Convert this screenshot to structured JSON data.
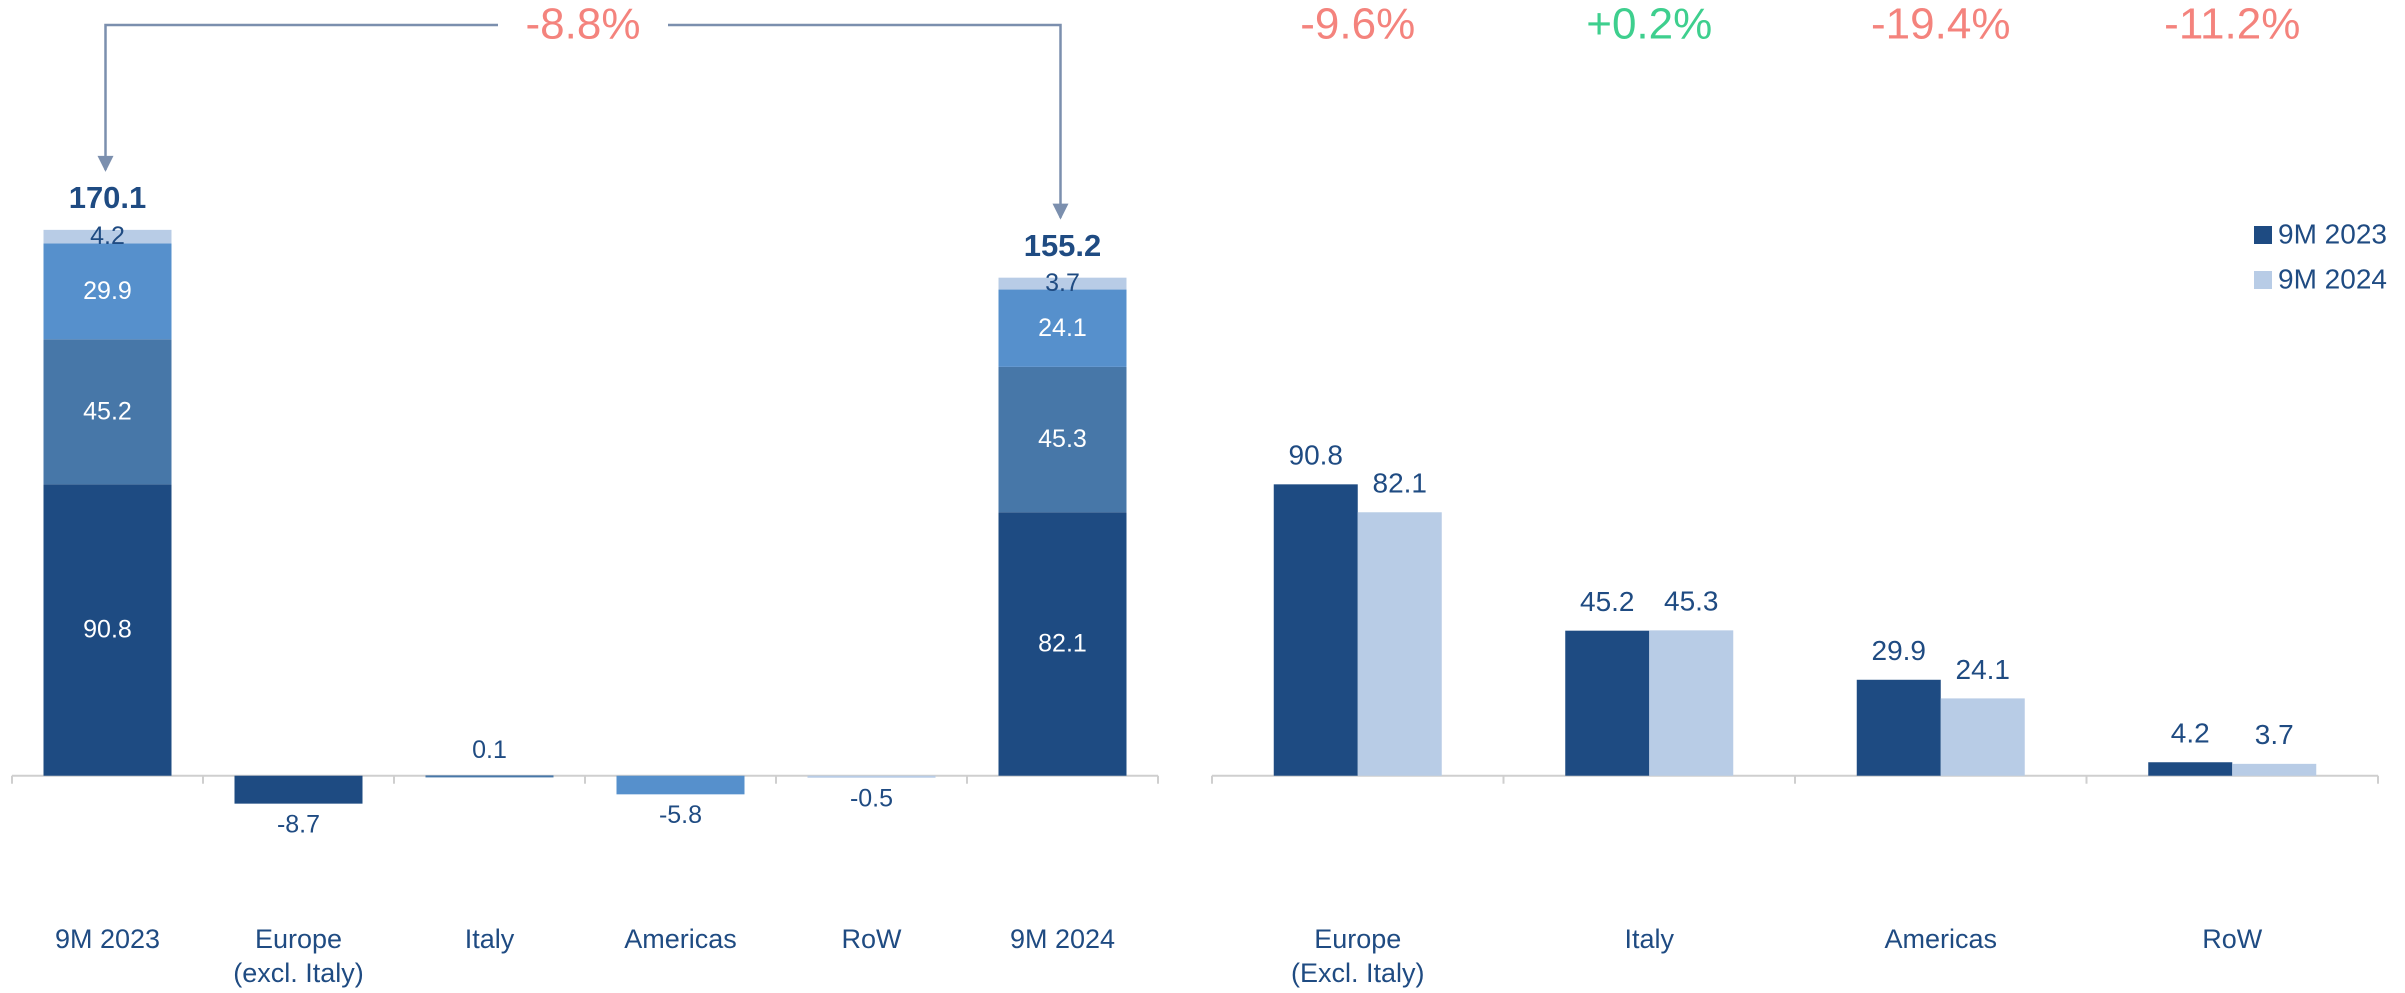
{
  "chart_data": [
    {
      "type": "waterfall",
      "categories": [
        "9M 2023",
        "Europe\n(excl. Italy)",
        "Italy",
        "Americas",
        "RoW",
        "9M 2024"
      ],
      "series": [
        {
          "color": "#1e4b82",
          "values": [
            90.8,
            -8.7,
            null,
            null,
            null,
            82.1
          ]
        },
        {
          "color": "#4777a8",
          "values": [
            45.2,
            null,
            0.1,
            null,
            null,
            45.3
          ]
        },
        {
          "color": "#5690cc",
          "values": [
            29.9,
            null,
            null,
            -5.8,
            null,
            24.1
          ]
        },
        {
          "color": "#b8cce6",
          "values": [
            4.2,
            null,
            null,
            null,
            -0.5,
            3.7
          ]
        }
      ],
      "totals": [
        170.1,
        null,
        null,
        null,
        null,
        155.2
      ],
      "annotation": {
        "text": "-8.8%",
        "color": "#f4837d"
      },
      "ylim": [
        -30,
        190
      ]
    },
    {
      "type": "bar",
      "categories": [
        "Europe\n(Excl. Italy)",
        "Italy",
        "Americas",
        "RoW"
      ],
      "series": [
        {
          "name": "9M 2023",
          "color": "#1e4b82",
          "values": [
            90.8,
            45.2,
            29.9,
            4.2
          ]
        },
        {
          "name": "9M 2024",
          "color": "#b8cce6",
          "values": [
            82.1,
            45.3,
            24.1,
            3.7
          ]
        }
      ],
      "annotations": [
        {
          "text": "-9.6%",
          "color": "#f4837d"
        },
        {
          "text": "+0.2%",
          "color": "#3ecf8e"
        },
        {
          "text": "-19.4%",
          "color": "#f4837d"
        },
        {
          "text": "-11.2%",
          "color": "#f4837d"
        }
      ],
      "legend": "top-right",
      "ylim": [
        -30,
        190
      ]
    }
  ]
}
